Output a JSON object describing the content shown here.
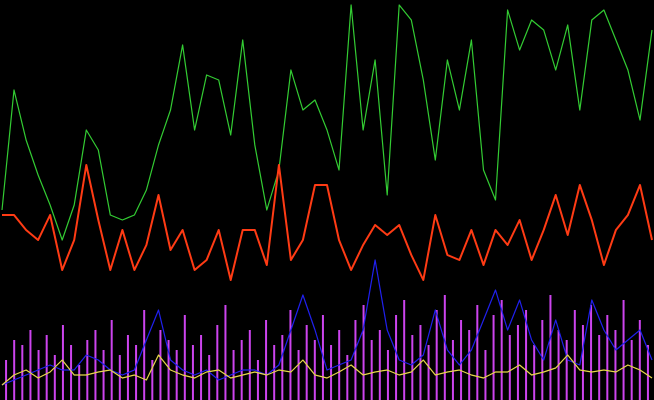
{
  "chart_data": [
    {
      "type": "line",
      "ylim": [
        0,
        400
      ],
      "series": [
        {
          "color": "#33cc33",
          "values": [
            190,
            310,
            260,
            225,
            195,
            160,
            195,
            270,
            250,
            185,
            180,
            185,
            210,
            255,
            290,
            355,
            270,
            325,
            320,
            265,
            360,
            255,
            190,
            230,
            330,
            290,
            300,
            270,
            230,
            395,
            270,
            340,
            205,
            395,
            380,
            320,
            240,
            340,
            290,
            360,
            230,
            200,
            390,
            350,
            380,
            370,
            330,
            375,
            290,
            380,
            390,
            360,
            330,
            280,
            370
          ]
        },
        {
          "color": "#ff3b14",
          "values": [
            185,
            185,
            170,
            160,
            185,
            130,
            160,
            235,
            180,
            130,
            170,
            130,
            155,
            205,
            150,
            170,
            130,
            140,
            170,
            120,
            170,
            170,
            135,
            235,
            140,
            160,
            215,
            215,
            160,
            130,
            155,
            175,
            165,
            175,
            145,
            120,
            185,
            145,
            140,
            170,
            135,
            170,
            155,
            180,
            140,
            170,
            205,
            165,
            215,
            180,
            135,
            170,
            185,
            215,
            160
          ]
        },
        {
          "color": "#2020ee",
          "values": [
            15,
            20,
            25,
            30,
            35,
            30,
            30,
            45,
            40,
            30,
            25,
            30,
            60,
            90,
            40,
            30,
            25,
            30,
            20,
            25,
            30,
            30,
            25,
            35,
            70,
            105,
            70,
            30,
            35,
            40,
            70,
            140,
            70,
            40,
            35,
            45,
            90,
            50,
            35,
            50,
            80,
            110,
            70,
            100,
            60,
            40,
            80,
            40,
            35,
            100,
            70,
            50,
            60,
            70,
            40
          ]
        },
        {
          "color": "#e8d84a",
          "values": [
            15,
            25,
            30,
            22,
            28,
            40,
            25,
            25,
            28,
            30,
            22,
            25,
            20,
            45,
            30,
            25,
            22,
            28,
            30,
            22,
            25,
            28,
            25,
            30,
            28,
            40,
            25,
            22,
            28,
            35,
            25,
            28,
            30,
            25,
            28,
            40,
            25,
            28,
            30,
            25,
            22,
            28,
            28,
            35,
            25,
            28,
            32,
            45,
            30,
            28,
            30,
            28,
            35,
            30,
            22
          ]
        }
      ]
    },
    {
      "type": "bar",
      "ylim": [
        0,
        400
      ],
      "color": "#cc44ee",
      "values": [
        40,
        60,
        55,
        70,
        50,
        65,
        45,
        75,
        55,
        35,
        60,
        70,
        50,
        80,
        45,
        65,
        55,
        90,
        40,
        70,
        60,
        50,
        85,
        55,
        65,
        45,
        75,
        95,
        50,
        60,
        70,
        40,
        80,
        55,
        65,
        90,
        50,
        75,
        60,
        85,
        55,
        70,
        45,
        80,
        95,
        60,
        70,
        50,
        85,
        100,
        65,
        75,
        55,
        90,
        105,
        60,
        80,
        70,
        95,
        50,
        85,
        100,
        65,
        75,
        90,
        55,
        80,
        105,
        70,
        60,
        90,
        75,
        95,
        65,
        85,
        70,
        100,
        60,
        80,
        55
      ]
    }
  ]
}
